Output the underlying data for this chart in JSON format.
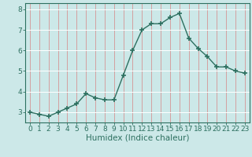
{
  "xlabel": "Humidex (Indice chaleur)",
  "x": [
    0,
    1,
    2,
    3,
    4,
    5,
    6,
    7,
    8,
    9,
    10,
    11,
    12,
    13,
    14,
    15,
    16,
    17,
    18,
    19,
    20,
    21,
    22,
    23
  ],
  "y": [
    3.0,
    2.9,
    2.8,
    3.0,
    3.2,
    3.4,
    3.9,
    3.7,
    3.6,
    3.6,
    4.8,
    6.0,
    7.0,
    7.3,
    7.3,
    7.6,
    7.8,
    6.6,
    6.1,
    5.7,
    5.2,
    5.2,
    5.0,
    4.9
  ],
  "ylim": [
    2.5,
    8.3
  ],
  "yticks": [
    3,
    4,
    5,
    6,
    7,
    8
  ],
  "line_color": "#2d7060",
  "marker": "+",
  "marker_size": 4,
  "marker_lw": 1.2,
  "bg_color": "#cce8e8",
  "grid_h_color": "#ffffff",
  "grid_v_color": "#d4a0a0",
  "axis_color": "#2d7060",
  "tick_color": "#2d7060",
  "label_color": "#2d7060",
  "font_size_tick": 6.5,
  "font_size_label": 7.5,
  "linewidth": 1.0
}
